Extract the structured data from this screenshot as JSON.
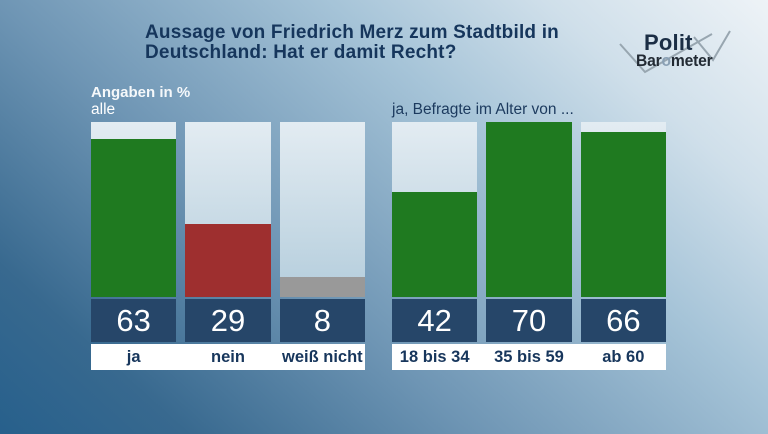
{
  "title": {
    "line1": "Aussage von Friedrich Merz zum Stadtbild in",
    "line2": "Deutschland: Hat er damit Recht?"
  },
  "logo": {
    "line1": "Polit",
    "line2_pre": "Bar",
    "line2_o": "o",
    "line2_post": "meter"
  },
  "subtitle": "Angaben in %",
  "colors": {
    "green": "#1f7a20",
    "red": "#9e2f2f",
    "gray": "#999999",
    "value_block": "#264669",
    "label_text": "#17365c",
    "bg_light": "#eef3f7",
    "bg_dark": "#27608c"
  },
  "chart_data": [
    {
      "type": "bar",
      "title": "alle",
      "categories": [
        "ja",
        "nein",
        "weiß nicht"
      ],
      "values": [
        63,
        29,
        8
      ],
      "colors": [
        "#1f7a20",
        "#9e2f2f",
        "#999999"
      ],
      "unit": "%",
      "ylim": [
        0,
        70
      ],
      "grid": false,
      "legend": "none"
    },
    {
      "type": "bar",
      "title": "ja, Befragte im Alter von ...",
      "categories": [
        "18 bis 34",
        "35 bis 59",
        "ab 60"
      ],
      "values": [
        42,
        70,
        66
      ],
      "colors": [
        "#1f7a20",
        "#1f7a20",
        "#1f7a20"
      ],
      "unit": "%",
      "ylim": [
        0,
        70
      ],
      "grid": false,
      "legend": "none"
    }
  ]
}
